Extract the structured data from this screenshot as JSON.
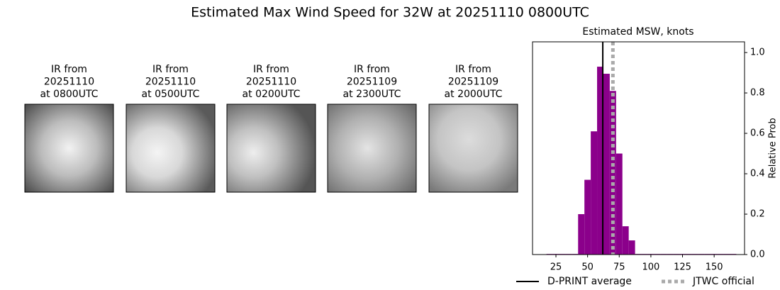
{
  "title": "Estimated Max Wind Speed for 32W at 20251110 0800UTC",
  "panels": [
    {
      "lines": [
        "IR from",
        "20251110",
        "at 0800UTC"
      ]
    },
    {
      "lines": [
        "IR from",
        "20251110",
        "at 0500UTC"
      ]
    },
    {
      "lines": [
        "IR from",
        "20251110",
        "at 0200UTC"
      ]
    },
    {
      "lines": [
        "IR from",
        "20251109",
        "at 2300UTC"
      ]
    },
    {
      "lines": [
        "IR from",
        "20251109",
        "at 2000UTC"
      ]
    }
  ],
  "chart_data": {
    "type": "histogram",
    "title": "Estimated MSW, knots",
    "ylabel": "Relative Prob",
    "bins": [
      17.5,
      22.5,
      27.5,
      32.5,
      37.5,
      42.5,
      47.5,
      52.5,
      57.5,
      62.5,
      67.5,
      72.5,
      77.5,
      82.5,
      87.5,
      92.5,
      97.5,
      102.5,
      107.5,
      112.5,
      117.5,
      122.5,
      127.5,
      132.5,
      137.5,
      142.5,
      147.5,
      152.5,
      157.5,
      162.5,
      167.5
    ],
    "values": [
      0.003,
      0.003,
      0.003,
      0.003,
      0.003,
      0.2,
      0.37,
      0.61,
      0.93,
      0.895,
      0.81,
      0.5,
      0.14,
      0.07,
      0.003,
      0.003,
      0.003,
      0.003,
      0.003,
      0.003,
      0.003,
      0.003,
      0.003,
      0.003,
      0.003,
      0.003,
      0.003,
      0.003,
      0.003,
      0.003
    ],
    "color": "#8b008b",
    "xlim": [
      6.5,
      174
    ],
    "ylim": [
      0,
      1.053
    ],
    "xticks": [
      25,
      50,
      75,
      100,
      125,
      150
    ],
    "yticks": [
      {
        "value": 0,
        "label": "0.0"
      },
      0.2,
      0.4,
      0.6,
      0.8,
      {
        "value": 1,
        "label": "1.0"
      }
    ],
    "y_axis_side": "right",
    "reference_lines": [
      {
        "name": "D-PRINT average",
        "x": 62,
        "color": "#000000",
        "style": "solid"
      },
      {
        "name": "JTWC official",
        "x": 70,
        "color": "#aaaaaa",
        "style": "dotted"
      }
    ]
  }
}
